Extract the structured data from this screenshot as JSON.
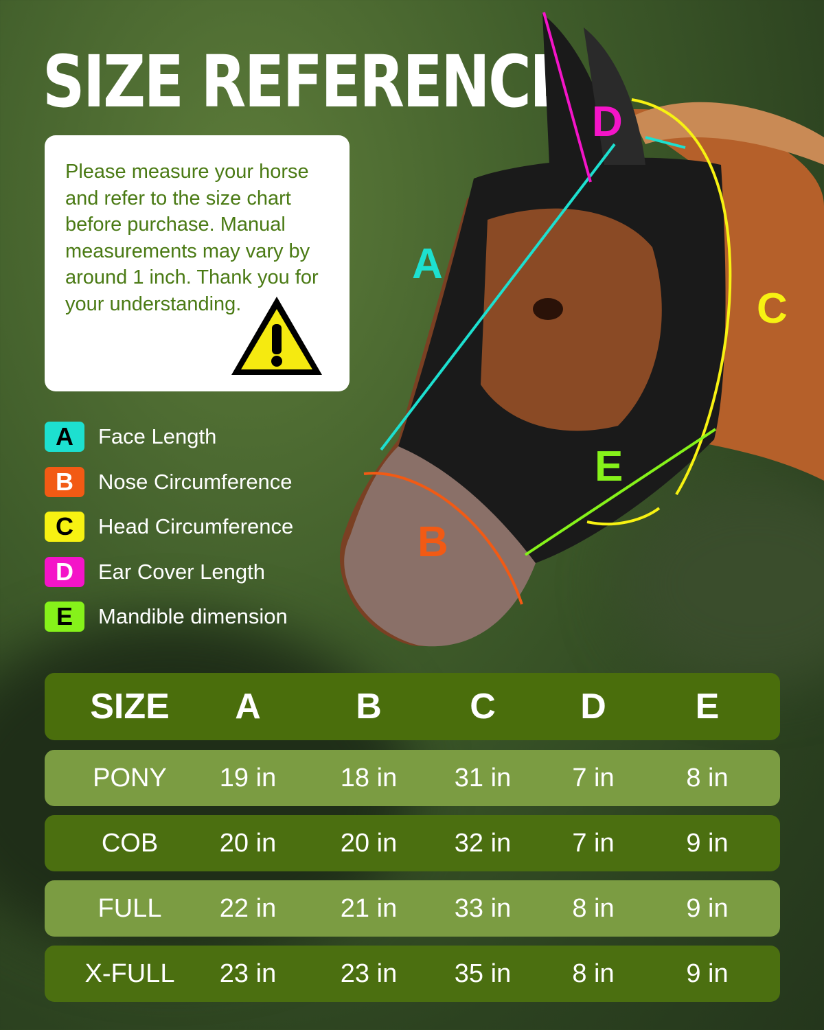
{
  "title": "SIZE REFERENCE",
  "note": "Please measure your horse and refer to the size chart before purchase. Manual measurements may vary by around 1 inch. Thank you for your understanding.",
  "legend": [
    {
      "letter": "A",
      "label": "Face Length",
      "color": "#1de0d0",
      "text_color": "#000000"
    },
    {
      "letter": "B",
      "label": "Nose Circumference",
      "color": "#f25a14",
      "text_color": "#ffffff"
    },
    {
      "letter": "C",
      "label": "Head Circumference",
      "color": "#f7f212",
      "text_color": "#000000"
    },
    {
      "letter": "D",
      "label": "Ear Cover Length",
      "color": "#f414c8",
      "text_color": "#ffffff"
    },
    {
      "letter": "E",
      "label": "Mandible dimension",
      "color": "#86f21a",
      "text_color": "#000000"
    }
  ],
  "table": {
    "headers": [
      "SIZE",
      "A",
      "B",
      "C",
      "D",
      "E"
    ],
    "rows": [
      [
        "PONY",
        "19 in",
        "18 in",
        "31 in",
        "7 in",
        "8 in"
      ],
      [
        "COB",
        "20 in",
        "20 in",
        "32 in",
        "7 in",
        "9 in"
      ],
      [
        "FULL",
        "22 in",
        "21 in",
        "33 in",
        "8 in",
        "9 in"
      ],
      [
        "X-FULL",
        "23 in",
        "23 in",
        "35 in",
        "8 in",
        "9 in"
      ]
    ]
  }
}
